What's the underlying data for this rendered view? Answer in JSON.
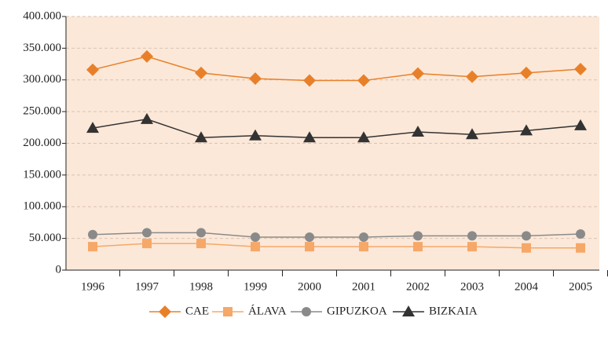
{
  "chart_data": {
    "type": "line",
    "categories": [
      "1996",
      "1997",
      "1998",
      "1999",
      "2000",
      "2001",
      "2002",
      "2003",
      "2004",
      "2005"
    ],
    "series": [
      {
        "name": "CAE",
        "color": "#e8802a",
        "marker": "diamond",
        "values": [
          316000,
          337000,
          311000,
          302000,
          299000,
          299000,
          310000,
          305000,
          311000,
          317000
        ]
      },
      {
        "name": "ÁLAVA",
        "color": "#f5a868",
        "marker": "square",
        "values": [
          37000,
          42000,
          42000,
          37000,
          37000,
          37000,
          37000,
          37000,
          35000,
          35000
        ]
      },
      {
        "name": "GIPUZKOA",
        "color": "#8a8a8a",
        "marker": "circle",
        "values": [
          56000,
          59000,
          59000,
          52000,
          52000,
          52000,
          54000,
          54000,
          54000,
          57000
        ]
      },
      {
        "name": "BIZKAIA",
        "color": "#333333",
        "marker": "triangle",
        "values": [
          224000,
          238000,
          209000,
          212000,
          209000,
          209000,
          218000,
          214000,
          220000,
          228000
        ]
      }
    ],
    "ylim": [
      0,
      400000
    ],
    "yticks": [
      0,
      {
        "value": 50000,
        "label": "50.000"
      },
      {
        "value": 100000,
        "label": "100.000"
      },
      {
        "value": 150000,
        "label": "150.000"
      },
      {
        "value": 200000,
        "label": "200.000"
      },
      {
        "value": 250000,
        "label": "250.000"
      },
      {
        "value": 300000,
        "label": "300.000"
      },
      {
        "value": 350000,
        "label": "350.000"
      },
      {
        "value": 400000,
        "label": "400.000"
      }
    ],
    "grid": true,
    "legend": "bottom"
  }
}
